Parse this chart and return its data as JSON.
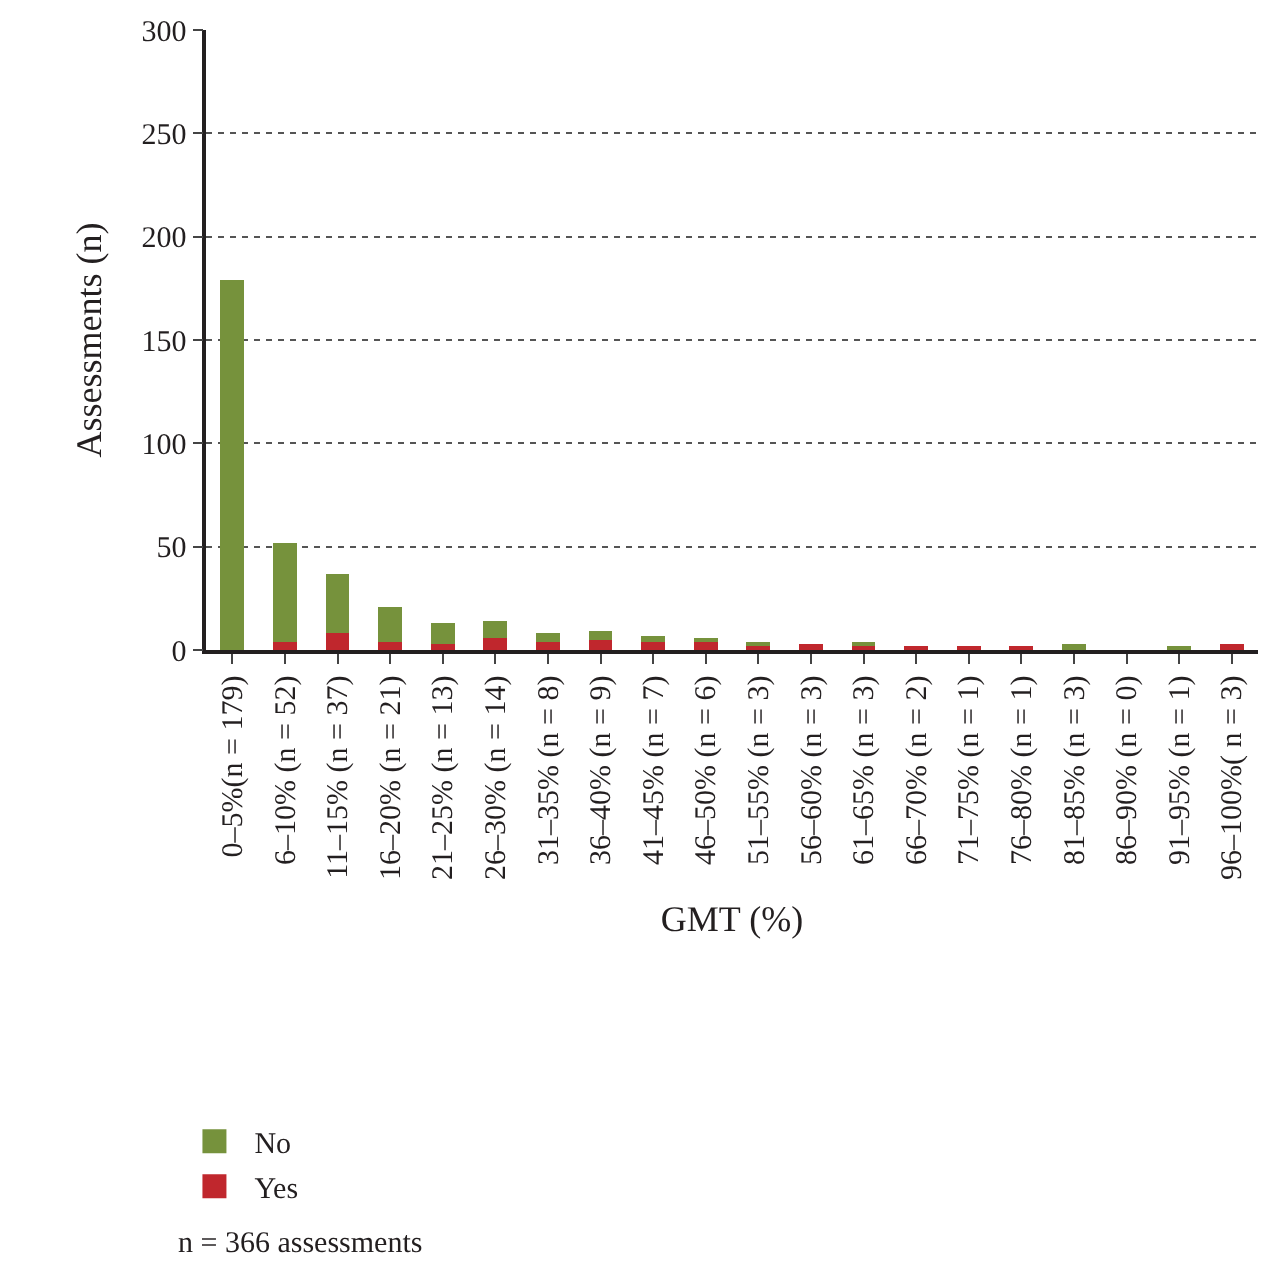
{
  "chart_data": {
    "type": "bar",
    "stacked": true,
    "xlabel": "GMT (%)",
    "ylabel": "Assessments (n)",
    "categories": [
      "0–5%(n = 179)",
      "6–10% (n = 52)",
      "11–15% (n = 37)",
      "16–20% (n = 21)",
      "21–25% (n = 13)",
      "26–30% (n = 14)",
      "31–35% (n = 8)",
      "36–40% (n = 9)",
      "41–45% (n = 7)",
      "46–50% (n = 6)",
      "51–55% (n = 3)",
      "56–60% (n = 3)",
      "61–65% (n = 3)",
      "66–70% (n = 2)",
      "71–75% (n = 1)",
      "76–80% (n = 1)",
      "81–85% (n = 3)",
      "86–90% (n = 0)",
      "91–95% (n = 1)",
      "96–100%( n = 3)"
    ],
    "series": [
      {
        "name": "Yes",
        "color": "#c0272d",
        "values": [
          0,
          4,
          8,
          4,
          3,
          6,
          4,
          5,
          4,
          4,
          2,
          3,
          2,
          2,
          1,
          1,
          0,
          0,
          0,
          3
        ]
      },
      {
        "name": "No",
        "color": "#76923c",
        "values": [
          179,
          48,
          29,
          17,
          10,
          8,
          4,
          4,
          3,
          2,
          1,
          0,
          1,
          0,
          0,
          0,
          3,
          0,
          1,
          0
        ]
      }
    ],
    "ylim": [
      0,
      300
    ],
    "yticks": [
      0,
      50,
      100,
      150,
      200,
      250,
      300
    ],
    "grid": "y",
    "legend": "bottom left",
    "annotations": [
      "n = 366 assessments"
    ]
  }
}
